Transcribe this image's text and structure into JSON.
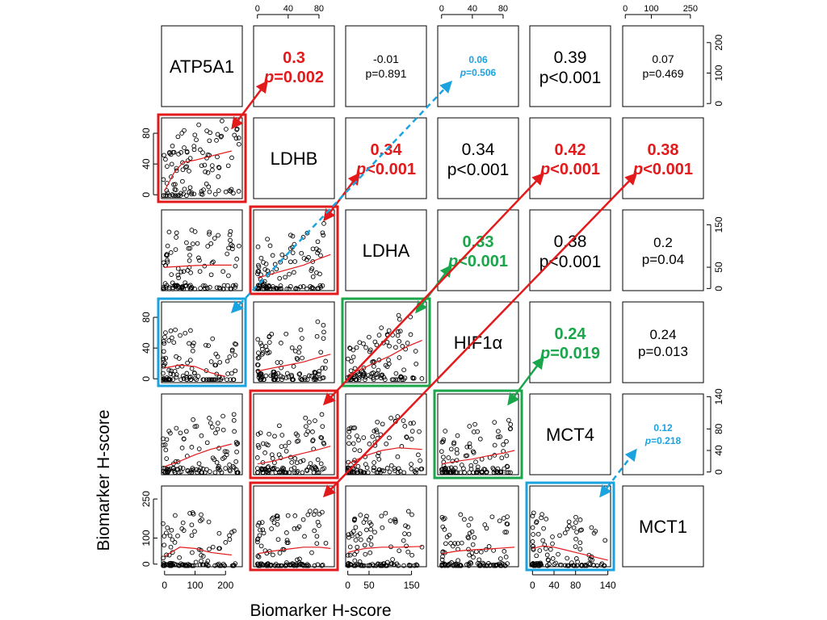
{
  "chart_data": {
    "type": "scatter",
    "xlabel": "Biomarker H-score",
    "ylabel": "Biomarker H-score",
    "variables": [
      "ATP5A1",
      "LDHB",
      "LDHA",
      "HIF1α",
      "MCT4",
      "MCT1"
    ],
    "axes": {
      "ATP5A1": {
        "ticks": [
          0,
          100,
          200
        ],
        "range": [
          -10,
          255
        ]
      },
      "LDHB": {
        "ticks": [
          0,
          40,
          80
        ],
        "range": [
          -5,
          100
        ]
      },
      "LDHA": {
        "ticks": [
          0,
          50,
          150
        ],
        "range": [
          -5,
          185
        ]
      },
      "HIF1α": {
        "ticks": [
          0,
          40,
          80
        ],
        "range": [
          -5,
          100
        ]
      },
      "MCT4": {
        "ticks": [
          0,
          40,
          80,
          140
        ],
        "range": [
          -5,
          145
        ]
      },
      "MCT1": {
        "ticks": [
          0,
          100,
          250
        ],
        "range": [
          -10,
          300
        ]
      }
    },
    "tick_axes": {
      "top": [
        1,
        3,
        5
      ],
      "bottom": [
        0,
        2,
        4
      ],
      "left": [
        1,
        3,
        5
      ],
      "right": [
        0,
        2,
        4
      ]
    },
    "correlations": [
      {
        "row": 0,
        "col": 1,
        "r": "0.3",
        "p": "p=0.002",
        "color": "#e31a1c",
        "bold": true,
        "p_italic": true
      },
      {
        "row": 0,
        "col": 2,
        "r": "-0.01",
        "p": "p=0.891",
        "color": "#000000",
        "bold": false,
        "p_italic": false,
        "size": "small"
      },
      {
        "row": 0,
        "col": 3,
        "r": "0.06",
        "p": "p=0.506",
        "color": "#1ba3e0",
        "bold": true,
        "p_italic": true,
        "size": "tiny"
      },
      {
        "row": 0,
        "col": 4,
        "r": "0.39",
        "p": "p<0.001",
        "color": "#000000",
        "bold": false,
        "p_italic": false,
        "size": "large"
      },
      {
        "row": 0,
        "col": 5,
        "r": "0.07",
        "p": "p=0.469",
        "color": "#000000",
        "bold": false,
        "p_italic": false,
        "size": "small"
      },
      {
        "row": 1,
        "col": 2,
        "r": "0.34",
        "p": "p<0.001",
        "color": "#e31a1c",
        "bold": true,
        "p_italic": true
      },
      {
        "row": 1,
        "col": 3,
        "r": "0.34",
        "p": "p<0.001",
        "color": "#000000",
        "bold": false,
        "p_italic": false,
        "size": "large"
      },
      {
        "row": 1,
        "col": 4,
        "r": "0.42",
        "p": "p<0.001",
        "color": "#e31a1c",
        "bold": true,
        "p_italic": true
      },
      {
        "row": 1,
        "col": 5,
        "r": "0.38",
        "p": "p<0.001",
        "color": "#e31a1c",
        "bold": true,
        "p_italic": true
      },
      {
        "row": 2,
        "col": 3,
        "r": "0.33",
        "p": "p<0.001",
        "color": "#1aa64a",
        "bold": true,
        "p_italic": true
      },
      {
        "row": 2,
        "col": 4,
        "r": "0.38",
        "p": "p<0.001",
        "color": "#000000",
        "bold": false,
        "p_italic": false,
        "size": "large"
      },
      {
        "row": 2,
        "col": 5,
        "r": "0.2",
        "p": "p=0.04",
        "color": "#000000",
        "bold": false,
        "p_italic": false
      },
      {
        "row": 3,
        "col": 4,
        "r": "0.24",
        "p": "p=0.019",
        "color": "#1aa64a",
        "bold": true,
        "p_italic": true
      },
      {
        "row": 3,
        "col": 5,
        "r": "0.24",
        "p": "p=0.013",
        "color": "#000000",
        "bold": false,
        "p_italic": false
      },
      {
        "row": 4,
        "col": 5,
        "r": "0.12",
        "p": "p=0.218",
        "color": "#1ba3e0",
        "bold": true,
        "p_italic": true,
        "size": "tiny"
      }
    ],
    "highlighted_panels": [
      {
        "row": 1,
        "col": 0,
        "color": "#e31a1c",
        "links_to": [
          0,
          1
        ]
      },
      {
        "row": 2,
        "col": 1,
        "color": "#e31a1c",
        "links_to": [
          1,
          2
        ]
      },
      {
        "row": 3,
        "col": 0,
        "color": "#1ba3e0",
        "links_to": [
          0,
          3
        ]
      },
      {
        "row": 3,
        "col": 2,
        "color": "#1aa64a",
        "links_to": [
          2,
          3
        ]
      },
      {
        "row": 4,
        "col": 1,
        "color": "#e31a1c",
        "links_to": [
          1,
          4
        ]
      },
      {
        "row": 4,
        "col": 3,
        "color": "#1aa64a",
        "links_to": [
          3,
          4
        ]
      },
      {
        "row": 5,
        "col": 1,
        "color": "#e31a1c",
        "links_to": [
          1,
          5
        ]
      },
      {
        "row": 5,
        "col": 4,
        "color": "#1ba3e0",
        "links_to": [
          4,
          5
        ]
      }
    ],
    "trend_lines": {
      "color": "#e31a1c",
      "panels": [
        {
          "row": 1,
          "col": 0,
          "x": [
            0,
            30,
            60,
            100,
            150,
            220
          ],
          "y": [
            5,
            28,
            42,
            45,
            50,
            57
          ]
        },
        {
          "row": 2,
          "col": 0,
          "x": [
            0,
            50,
            100,
            150,
            220
          ],
          "y": [
            50,
            52,
            54,
            55,
            55
          ]
        },
        {
          "row": 2,
          "col": 1,
          "x": [
            0,
            20,
            40,
            60,
            80,
            95
          ],
          "y": [
            25,
            35,
            45,
            55,
            70,
            80
          ]
        },
        {
          "row": 3,
          "col": 0,
          "x": [
            0,
            50,
            100,
            150,
            200
          ],
          "y": [
            14,
            18,
            16,
            8,
            3
          ]
        },
        {
          "row": 3,
          "col": 1,
          "x": [
            0,
            20,
            40,
            60,
            80,
            95
          ],
          "y": [
            10,
            14,
            18,
            22,
            28,
            32
          ]
        },
        {
          "row": 3,
          "col": 2,
          "x": [
            0,
            30,
            60,
            100,
            140,
            175
          ],
          "y": [
            5,
            12,
            20,
            30,
            42,
            50
          ]
        },
        {
          "row": 4,
          "col": 0,
          "x": [
            0,
            50,
            100,
            150,
            220
          ],
          "y": [
            10,
            20,
            32,
            42,
            52
          ]
        },
        {
          "row": 4,
          "col": 1,
          "x": [
            0,
            20,
            40,
            60,
            80,
            95
          ],
          "y": [
            15,
            20,
            28,
            35,
            42,
            48
          ]
        },
        {
          "row": 4,
          "col": 2,
          "x": [
            0,
            40,
            80,
            120,
            175
          ],
          "y": [
            15,
            30,
            40,
            45,
            42
          ]
        },
        {
          "row": 4,
          "col": 3,
          "x": [
            0,
            20,
            40,
            60,
            80,
            95
          ],
          "y": [
            15,
            20,
            24,
            30,
            35,
            40
          ]
        },
        {
          "row": 5,
          "col": 0,
          "x": [
            0,
            50,
            100,
            150,
            220
          ],
          "y": [
            30,
            65,
            60,
            45,
            35
          ]
        },
        {
          "row": 5,
          "col": 1,
          "x": [
            0,
            20,
            40,
            60,
            80,
            95
          ],
          "y": [
            40,
            50,
            58,
            65,
            65,
            60
          ]
        },
        {
          "row": 5,
          "col": 2,
          "x": [
            0,
            40,
            80,
            120,
            175
          ],
          "y": [
            45,
            60,
            65,
            65,
            68
          ]
        },
        {
          "row": 5,
          "col": 3,
          "x": [
            0,
            20,
            40,
            60,
            80,
            95
          ],
          "y": [
            40,
            50,
            55,
            58,
            62,
            65
          ]
        },
        {
          "row": 5,
          "col": 4,
          "x": [
            0,
            20,
            40,
            60,
            80,
            110,
            140
          ],
          "y": [
            60,
            70,
            65,
            55,
            45,
            30,
            15
          ]
        }
      ]
    },
    "scatter_points_per_panel": 110
  }
}
